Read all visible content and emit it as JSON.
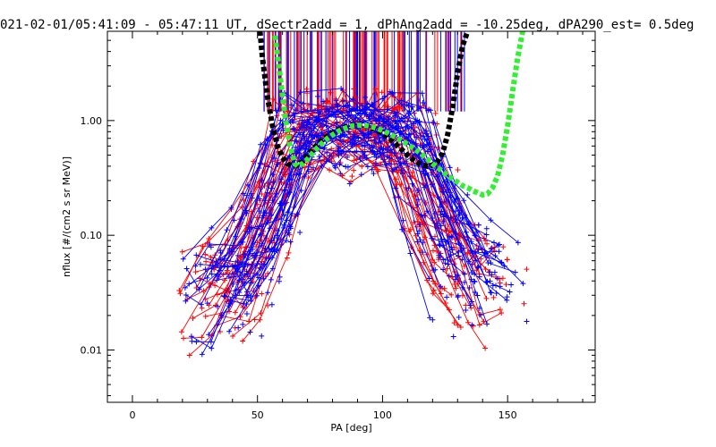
{
  "chart_data": {
    "type": "line",
    "title": "021-02-01/05:41:09 - 05:47:11 UT, dSectr2add = 1, dPhAng2add = -10.25deg, dPA290_est=   0.5deg",
    "xlabel": "PA [deg]",
    "ylabel": "nflux [#/(cm2 s sr MeV)]",
    "xlim": [
      -10,
      185
    ],
    "ylim": [
      0.0035,
      6
    ],
    "yscale": "log",
    "grid": false,
    "x_ticks": [
      0,
      50,
      100,
      150
    ],
    "x_tick_labels": [
      "0",
      "50",
      "100",
      "150"
    ],
    "y_ticks": [
      0.01,
      0.1,
      1.0
    ],
    "y_tick_labels": [
      "0.01",
      "0.10",
      "1.00"
    ],
    "colors": {
      "red": "#ff0000",
      "blue": "#0000ff",
      "black": "#000000",
      "green": "#33ee33"
    },
    "series": [
      {
        "color": "#000000",
        "style": "thick-dashed",
        "x": [
          51,
          52,
          54,
          56,
          58,
          60,
          62,
          64,
          66,
          68,
          70,
          72,
          74,
          76,
          78,
          80,
          82,
          84,
          86,
          88,
          90,
          92,
          94,
          96,
          98,
          100,
          102,
          104,
          106,
          108,
          110,
          112,
          114,
          116,
          118,
          120,
          122,
          124,
          126,
          128,
          130,
          132,
          134
        ],
        "y": [
          6,
          3.5,
          1.6,
          0.9,
          0.6,
          0.48,
          0.42,
          0.4,
          0.41,
          0.44,
          0.5,
          0.56,
          0.62,
          0.68,
          0.73,
          0.78,
          0.82,
          0.86,
          0.89,
          0.91,
          0.92,
          0.91,
          0.89,
          0.86,
          0.82,
          0.77,
          0.72,
          0.66,
          0.6,
          0.55,
          0.5,
          0.46,
          0.43,
          0.41,
          0.4,
          0.41,
          0.44,
          0.52,
          0.75,
          1.3,
          2.6,
          4.5,
          6
        ]
      },
      {
        "color": "#33ee33",
        "style": "thick-dashed",
        "x": [
          57,
          59,
          61,
          63,
          65,
          66,
          68,
          70,
          72,
          74,
          76,
          78,
          80,
          82,
          84,
          86,
          88,
          90,
          92,
          94,
          96,
          98,
          100,
          102,
          104,
          106,
          108,
          110,
          112,
          114,
          116,
          118,
          120,
          122,
          124,
          126,
          128,
          130,
          132,
          134,
          136,
          138,
          140,
          142,
          144,
          146,
          148,
          150,
          152,
          154,
          156
        ],
        "y": [
          5.5,
          2.5,
          1.1,
          0.6,
          0.42,
          0.4,
          0.42,
          0.46,
          0.52,
          0.58,
          0.64,
          0.7,
          0.75,
          0.8,
          0.84,
          0.87,
          0.9,
          0.91,
          0.91,
          0.9,
          0.88,
          0.85,
          0.82,
          0.78,
          0.74,
          0.7,
          0.66,
          0.62,
          0.58,
          0.54,
          0.5,
          0.46,
          0.42,
          0.39,
          0.36,
          0.33,
          0.31,
          0.29,
          0.27,
          0.26,
          0.245,
          0.235,
          0.225,
          0.23,
          0.26,
          0.33,
          0.5,
          0.9,
          1.8,
          3.5,
          6
        ]
      }
    ]
  }
}
